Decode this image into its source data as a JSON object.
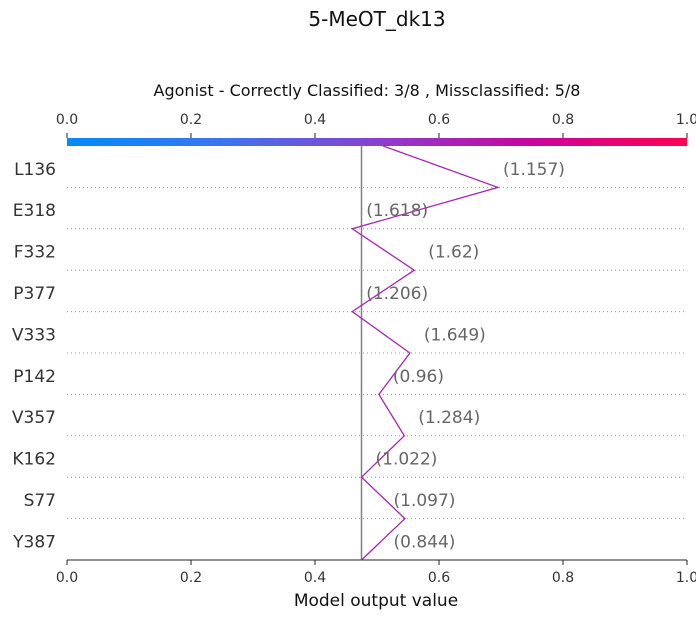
{
  "title": "5-MeOT_dk13",
  "subtitle": "Agonist - Correctly Classified: 3/8 , Missclassified: 5/8",
  "xlabel": "Model output value",
  "chart_data": {
    "type": "line",
    "title": "5-MeOT_dk13",
    "subtitle": "Agonist - Correctly Classified: 3/8 , Missclassified: 5/8",
    "xlabel": "Model output value",
    "ylabel": "",
    "xlim": [
      0.0,
      1.0
    ],
    "x_ticks": [
      0.0,
      0.2,
      0.4,
      0.6,
      0.8,
      1.0
    ],
    "x_tick_labels": [
      "0.0",
      "0.2",
      "0.4",
      "0.6",
      "0.8",
      "1.0"
    ],
    "base_value": 0.475,
    "top_value": 0.51,
    "colormap": [
      "#008bfb",
      "#6c58e6",
      "#9b33c6",
      "#c60099",
      "#ff0052"
    ],
    "line_color": "#a626b3",
    "base_line_color": "#808080",
    "grid": "dotted horizontal",
    "features": [
      {
        "name": "L136",
        "value_label": "(1.157)",
        "x": 0.695
      },
      {
        "name": "E318",
        "value_label": "(1.618)",
        "x": 0.46
      },
      {
        "name": "F332",
        "value_label": "(1.62)",
        "x": 0.56
      },
      {
        "name": "P377",
        "value_label": "(1.206)",
        "x": 0.46
      },
      {
        "name": "V333",
        "value_label": "(1.649)",
        "x": 0.553
      },
      {
        "name": "P142",
        "value_label": "(0.96)",
        "x": 0.503
      },
      {
        "name": "V357",
        "value_label": "(1.284)",
        "x": 0.544
      },
      {
        "name": "K162",
        "value_label": "(1.022)",
        "x": 0.475
      },
      {
        "name": "S77",
        "value_label": "(1.097)",
        "x": null
      },
      {
        "name": "Y387",
        "value_label": "(0.844)",
        "x": null
      }
    ]
  }
}
